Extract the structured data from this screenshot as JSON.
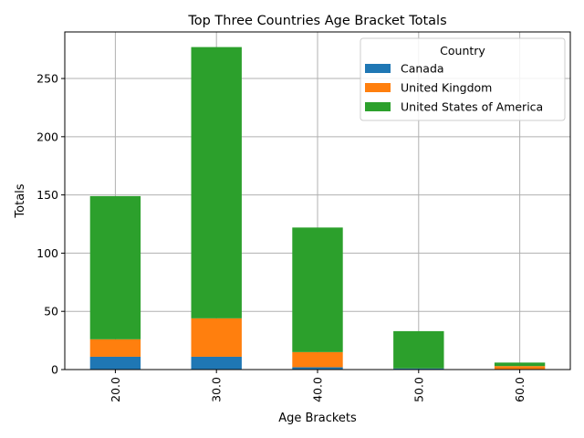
{
  "chart_data": {
    "type": "bar",
    "stacked": true,
    "title": "Top Three Countries Age Bracket Totals",
    "xlabel": "Age Brackets",
    "ylabel": "Totals",
    "categories": [
      "20.0",
      "30.0",
      "40.0",
      "50.0",
      "60.0"
    ],
    "ylim": [
      0,
      290
    ],
    "yticks": [
      0,
      50,
      100,
      150,
      200,
      250
    ],
    "grid": true,
    "legend": {
      "title": "Country",
      "placement": "top-right"
    },
    "series": [
      {
        "name": "Canada",
        "color": "#1f77b4",
        "values": [
          11,
          11,
          2,
          1,
          0
        ]
      },
      {
        "name": "United Kingdom",
        "color": "#ff7f0e",
        "values": [
          15,
          33,
          13,
          0,
          3
        ]
      },
      {
        "name": "United States of America",
        "color": "#2ca02c",
        "values": [
          123,
          233,
          107,
          32,
          3
        ]
      }
    ]
  }
}
